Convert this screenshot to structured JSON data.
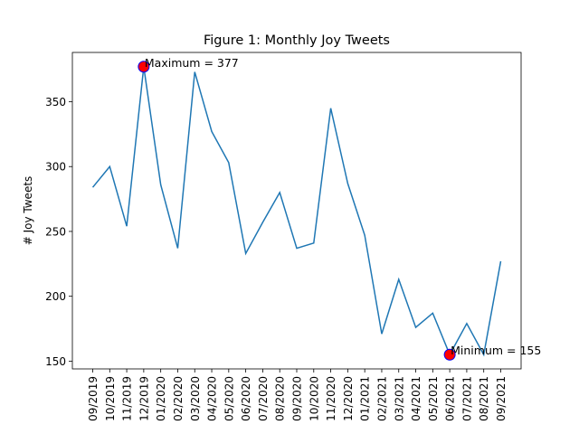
{
  "chart_data": {
    "type": "line",
    "title": "Figure 1: Monthly Joy Tweets",
    "xlabel": "",
    "ylabel": "# Joy Tweets",
    "categories": [
      "09/2019",
      "10/2019",
      "11/2019",
      "12/2019",
      "01/2020",
      "02/2020",
      "03/2020",
      "04/2020",
      "05/2020",
      "06/2020",
      "07/2020",
      "08/2020",
      "09/2020",
      "10/2020",
      "11/2020",
      "12/2020",
      "01/2021",
      "02/2021",
      "03/2021",
      "04/2021",
      "05/2021",
      "06/2021",
      "07/2021",
      "08/2021",
      "09/2021"
    ],
    "series": [
      {
        "values": [
          284,
          300,
          254,
          377,
          286,
          237,
          373,
          327,
          303,
          233,
          257,
          280,
          237,
          241,
          345,
          287,
          247,
          171,
          213,
          176,
          187,
          155,
          179,
          155,
          227
        ]
      }
    ],
    "ylim": [
      144,
      388
    ],
    "yticks": [
      150,
      200,
      250,
      300,
      350
    ],
    "grid": false,
    "line_color": "#1f77b4",
    "marker_face_color": "#ff0000",
    "marker_edge_color": "#0000ff",
    "annotations": [
      {
        "label": "Maximum = 377",
        "index": 3,
        "value": 377
      },
      {
        "label": "Minimum = 155",
        "index": 21,
        "value": 155
      }
    ]
  }
}
